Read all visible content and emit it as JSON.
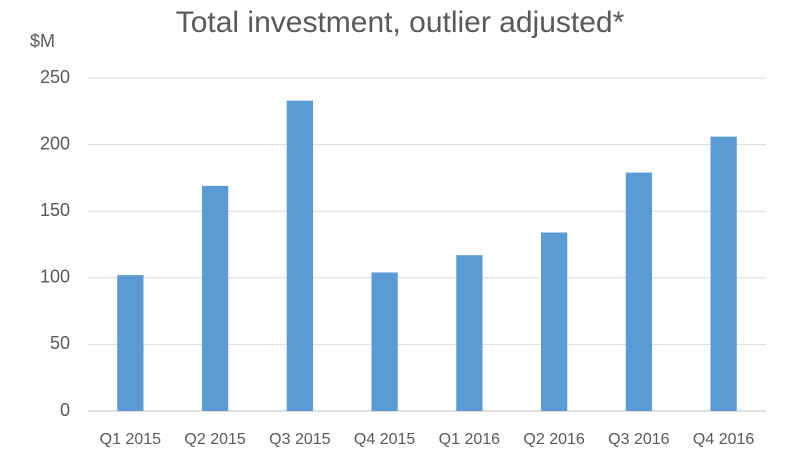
{
  "chart_data": {
    "type": "bar",
    "title": "Total investment, outlier adjusted*",
    "y_label": "$M",
    "categories": [
      "Q1 2015",
      "Q2 2015",
      "Q3 2015",
      "Q4 2015",
      "Q1 2016",
      "Q2 2016",
      "Q3 2016",
      "Q4 2016"
    ],
    "values": [
      102,
      169,
      233,
      104,
      117,
      134,
      179,
      206
    ],
    "color": "#5b9bd5",
    "ylim": [
      0,
      250
    ],
    "yticks": [
      0,
      50,
      100,
      150,
      200,
      250
    ],
    "grid": true
  }
}
